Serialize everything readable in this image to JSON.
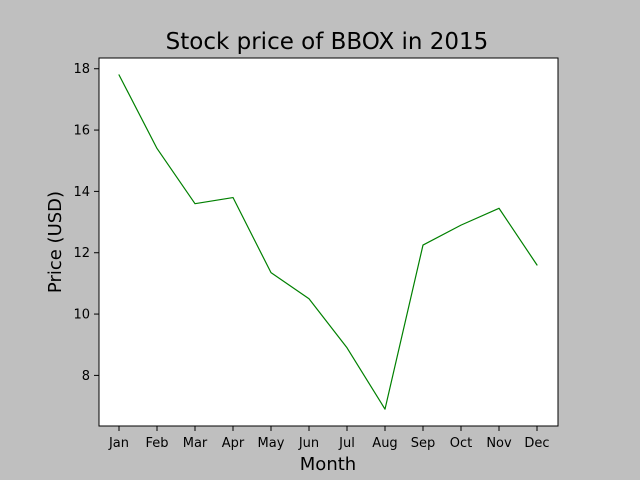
{
  "chart_data": {
    "type": "line",
    "title": "Stock price of BBOX in 2015",
    "xlabel": "Month",
    "ylabel": "Price (USD)",
    "categories": [
      "Jan",
      "Feb",
      "Mar",
      "Apr",
      "May",
      "Jun",
      "Jul",
      "Aug",
      "Sep",
      "Oct",
      "Nov",
      "Dec"
    ],
    "series": [
      {
        "values": [
          17.8,
          15.4,
          13.6,
          13.8,
          11.35,
          10.5,
          8.9,
          6.9,
          12.25,
          12.9,
          13.45,
          11.6
        ]
      }
    ],
    "y_ticks": [
      "8",
      "10",
      "12",
      "14",
      "16",
      "18"
    ],
    "ylim": [
      6.35,
      18.35
    ],
    "grid": false,
    "legend": "none",
    "colors": {
      "line": "#008000",
      "figure_background": "#bfbfbf",
      "axes_background": "#ffffff"
    }
  }
}
